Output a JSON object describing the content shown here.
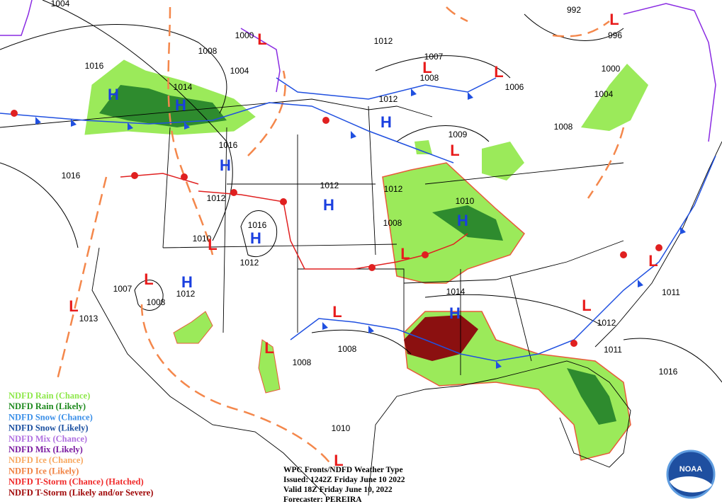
{
  "pressures": [
    "1004",
    "1000",
    "1008",
    "1004",
    "1016",
    "1014",
    "1012",
    "1007",
    "1008",
    "1012",
    "1006",
    "992",
    "996",
    "1000",
    "1004",
    "1008",
    "1009",
    "1016",
    "1016",
    "1012",
    "1012",
    "1012",
    "1010",
    "1008",
    "1016",
    "1010",
    "1012",
    "1007",
    "1012",
    "1008",
    "1013",
    "1014",
    "1011",
    "1012",
    "1011",
    "1008",
    "1008",
    "1016",
    "1010"
  ],
  "highs": [
    "H",
    "H",
    "H",
    "H",
    "H",
    "H",
    "H",
    "H",
    "H"
  ],
  "lows": [
    "L",
    "L",
    "L",
    "L",
    "L",
    "L",
    "L",
    "L",
    "L",
    "L",
    "L",
    "L",
    "L",
    "L"
  ],
  "high_color": "#1a3fe0",
  "low_color": "#e81c1c",
  "legend": [
    {
      "label": "NDFD Rain (Chance)",
      "color": "#8ee84a"
    },
    {
      "label": "NDFD Rain (Likely)",
      "color": "#1e8a1e"
    },
    {
      "label": "NDFD Snow (Chance)",
      "color": "#3a8fe8"
    },
    {
      "label": "NDFD Snow (Likely)",
      "color": "#1a4fa0"
    },
    {
      "label": "NDFD Mix (Chance)",
      "color": "#b070e0"
    },
    {
      "label": "NDFD Mix (Likely)",
      "color": "#7a1aa0"
    },
    {
      "label": "NDFD Ice (Chance)",
      "color": "#f8a860"
    },
    {
      "label": "NDFD Ice (Likely)",
      "color": "#f08040"
    },
    {
      "label": "NDFD T-Storm (Chance) (Hatched)",
      "color": "#f02828"
    },
    {
      "label": "NDFD T-Storm (Likely and/or Severe)",
      "color": "#a00808"
    }
  ],
  "info": {
    "title": "WPC Fronts/NDFD Weather Type",
    "issued": "Issued: 1242Z Friday June 10 2022",
    "valid": "Valid 18Z Friday June 10, 2022",
    "forecaster": "Forecaster: PEREIRA"
  },
  "logo": "NOAA"
}
